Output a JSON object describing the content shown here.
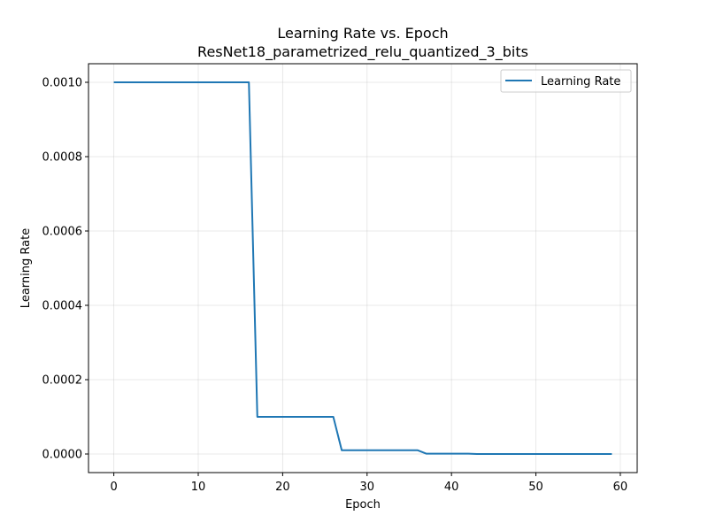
{
  "chart_data": {
    "type": "line",
    "title": "Learning Rate vs. Epoch",
    "subtitle": "ResNet18_parametrized_relu_quantized_3_bits",
    "xlabel": "Epoch",
    "ylabel": "Learning Rate",
    "xlim": [
      -3,
      62
    ],
    "ylim": [
      -5e-05,
      0.00105
    ],
    "x_ticks": [
      0,
      10,
      20,
      30,
      40,
      50,
      60
    ],
    "x_tick_labels": [
      "0",
      "10",
      "20",
      "30",
      "40",
      "50",
      "60"
    ],
    "y_ticks": [
      0,
      0.0002,
      0.0004,
      0.0006,
      0.0008,
      0.001
    ],
    "y_tick_labels": [
      "0.0000",
      "0.0002",
      "0.0004",
      "0.0006",
      "0.0008",
      "0.0010"
    ],
    "grid": true,
    "legend_position": "top-right",
    "series": [
      {
        "name": "Learning Rate",
        "color": "#1f77b4",
        "x": [
          0,
          1,
          2,
          3,
          4,
          5,
          6,
          7,
          8,
          9,
          10,
          11,
          12,
          13,
          14,
          15,
          16,
          17,
          18,
          19,
          20,
          21,
          22,
          23,
          24,
          25,
          26,
          27,
          28,
          29,
          30,
          31,
          32,
          33,
          34,
          35,
          36,
          37,
          38,
          39,
          40,
          41,
          42,
          43,
          44,
          45,
          46,
          47,
          48,
          49,
          50,
          51,
          52,
          53,
          54,
          55,
          56,
          57,
          58,
          59
        ],
        "y": [
          0.001,
          0.001,
          0.001,
          0.001,
          0.001,
          0.001,
          0.001,
          0.001,
          0.001,
          0.001,
          0.001,
          0.001,
          0.001,
          0.001,
          0.001,
          0.001,
          0.001,
          0.0001,
          0.0001,
          0.0001,
          0.0001,
          0.0001,
          0.0001,
          0.0001,
          0.0001,
          0.0001,
          0.0001,
          1e-05,
          1e-05,
          1e-05,
          1e-05,
          1e-05,
          1e-05,
          1e-05,
          1e-05,
          1e-05,
          1e-05,
          1e-06,
          1e-06,
          1e-06,
          1e-06,
          1e-06,
          1e-06,
          1e-07,
          1e-07,
          1e-07,
          1e-07,
          1e-07,
          1e-07,
          1e-07,
          1e-07,
          1e-07,
          1e-07,
          1e-07,
          1e-07,
          1e-07,
          1e-07,
          1e-07,
          1e-07,
          1e-07
        ]
      }
    ]
  }
}
